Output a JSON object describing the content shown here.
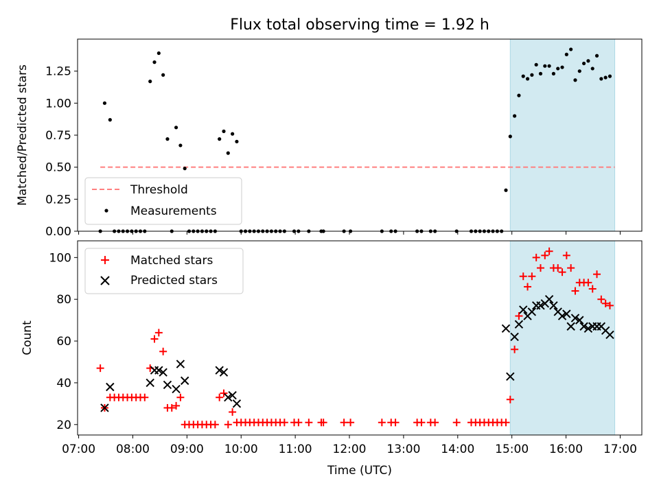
{
  "chart_data": {
    "title": "Flux total observing time = 1.92 h",
    "xlabel": "Time (UTC)",
    "x_ticks": [
      "07:00",
      "08:00",
      "09:00",
      "10:00",
      "11:00",
      "12:00",
      "13:00",
      "14:00",
      "15:00",
      "16:00",
      "17:00"
    ],
    "x_range_hours": [
      6.98,
      17.4
    ],
    "shaded_interval_hours": [
      14.97,
      16.9
    ],
    "shade_color": "#add8e6",
    "panels": [
      {
        "type": "scatter",
        "ylabel": "Matched/Predicted stars",
        "ylim": [
          0,
          1.5
        ],
        "y_ticks": [
          "0.00",
          "0.25",
          "0.50",
          "0.75",
          "1.00",
          "1.25"
        ],
        "legend_position": "lower-left",
        "threshold": {
          "name": "Threshold",
          "value": 0.5,
          "x_range": [
            7.4,
            16.9
          ],
          "color": "#ff7f7f"
        },
        "series": [
          {
            "name": "Measurements",
            "color": "#000000",
            "marker": "dot",
            "points": [
              [
                7.4,
                0.0
              ],
              [
                7.48,
                1.0
              ],
              [
                7.58,
                0.87
              ],
              [
                7.66,
                0.0
              ],
              [
                7.74,
                0.0
              ],
              [
                7.82,
                0.0
              ],
              [
                7.9,
                0.0
              ],
              [
                7.98,
                0.0
              ],
              [
                8.06,
                0.0
              ],
              [
                8.14,
                0.0
              ],
              [
                8.22,
                0.0
              ],
              [
                8.32,
                1.17
              ],
              [
                8.4,
                1.32
              ],
              [
                8.48,
                1.39
              ],
              [
                8.56,
                1.22
              ],
              [
                8.64,
                0.72
              ],
              [
                8.72,
                0.0
              ],
              [
                8.8,
                0.81
              ],
              [
                8.88,
                0.67
              ],
              [
                8.96,
                0.49
              ],
              [
                9.04,
                0.0
              ],
              [
                9.12,
                0.0
              ],
              [
                9.2,
                0.0
              ],
              [
                9.28,
                0.0
              ],
              [
                9.36,
                0.0
              ],
              [
                9.44,
                0.0
              ],
              [
                9.52,
                0.0
              ],
              [
                9.6,
                0.72
              ],
              [
                9.68,
                0.78
              ],
              [
                9.76,
                0.61
              ],
              [
                9.84,
                0.76
              ],
              [
                9.92,
                0.7
              ],
              [
                10.0,
                0.0
              ],
              [
                10.08,
                0.0
              ],
              [
                10.16,
                0.0
              ],
              [
                10.24,
                0.0
              ],
              [
                10.32,
                0.0
              ],
              [
                10.4,
                0.0
              ],
              [
                10.48,
                0.0
              ],
              [
                10.56,
                0.0
              ],
              [
                10.64,
                0.0
              ],
              [
                10.72,
                0.0
              ],
              [
                10.8,
                0.0
              ],
              [
                10.98,
                0.0
              ],
              [
                11.06,
                0.0
              ],
              [
                11.25,
                0.0
              ],
              [
                11.48,
                0.0
              ],
              [
                11.52,
                0.0
              ],
              [
                11.9,
                0.0
              ],
              [
                12.02,
                0.0
              ],
              [
                12.6,
                0.0
              ],
              [
                12.77,
                0.0
              ],
              [
                12.85,
                0.0
              ],
              [
                13.25,
                0.0
              ],
              [
                13.33,
                0.0
              ],
              [
                13.5,
                0.0
              ],
              [
                13.58,
                0.0
              ],
              [
                13.98,
                0.0
              ],
              [
                14.25,
                0.0
              ],
              [
                14.33,
                0.0
              ],
              [
                14.41,
                0.0
              ],
              [
                14.49,
                0.0
              ],
              [
                14.57,
                0.0
              ],
              [
                14.65,
                0.0
              ],
              [
                14.73,
                0.0
              ],
              [
                14.81,
                0.0
              ],
              [
                14.89,
                0.32
              ],
              [
                14.97,
                0.74
              ],
              [
                15.05,
                0.9
              ],
              [
                15.13,
                1.06
              ],
              [
                15.21,
                1.21
              ],
              [
                15.29,
                1.19
              ],
              [
                15.37,
                1.22
              ],
              [
                15.45,
                1.3
              ],
              [
                15.53,
                1.23
              ],
              [
                15.61,
                1.29
              ],
              [
                15.69,
                1.29
              ],
              [
                15.77,
                1.23
              ],
              [
                15.85,
                1.27
              ],
              [
                15.93,
                1.28
              ],
              [
                16.01,
                1.38
              ],
              [
                16.09,
                1.42
              ],
              [
                16.17,
                1.18
              ],
              [
                16.25,
                1.25
              ],
              [
                16.33,
                1.31
              ],
              [
                16.41,
                1.33
              ],
              [
                16.49,
                1.27
              ],
              [
                16.57,
                1.37
              ],
              [
                16.65,
                1.19
              ],
              [
                16.73,
                1.2
              ],
              [
                16.81,
                1.21
              ]
            ]
          }
        ]
      },
      {
        "type": "scatter",
        "ylabel": "Count",
        "ylim": [
          15,
          108
        ],
        "y_ticks": [
          "20",
          "40",
          "60",
          "80",
          "100"
        ],
        "legend_position": "top-left",
        "series": [
          {
            "name": "Matched stars",
            "color": "#ff0000",
            "marker": "plus",
            "points": [
              [
                7.4,
                47
              ],
              [
                7.48,
                28
              ],
              [
                7.58,
                33
              ],
              [
                7.66,
                33
              ],
              [
                7.74,
                33
              ],
              [
                7.82,
                33
              ],
              [
                7.9,
                33
              ],
              [
                7.98,
                33
              ],
              [
                8.06,
                33
              ],
              [
                8.14,
                33
              ],
              [
                8.22,
                33
              ],
              [
                8.32,
                47
              ],
              [
                8.4,
                61
              ],
              [
                8.48,
                64
              ],
              [
                8.56,
                55
              ],
              [
                8.64,
                28
              ],
              [
                8.72,
                28
              ],
              [
                8.8,
                29
              ],
              [
                8.88,
                33
              ],
              [
                8.96,
                20
              ],
              [
                9.04,
                20
              ],
              [
                9.12,
                20
              ],
              [
                9.2,
                20
              ],
              [
                9.28,
                20
              ],
              [
                9.36,
                20
              ],
              [
                9.44,
                20
              ],
              [
                9.52,
                20
              ],
              [
                9.6,
                33
              ],
              [
                9.68,
                35
              ],
              [
                9.76,
                20
              ],
              [
                9.84,
                26
              ],
              [
                9.92,
                21
              ],
              [
                10.0,
                21
              ],
              [
                10.08,
                21
              ],
              [
                10.16,
                21
              ],
              [
                10.24,
                21
              ],
              [
                10.32,
                21
              ],
              [
                10.4,
                21
              ],
              [
                10.48,
                21
              ],
              [
                10.56,
                21
              ],
              [
                10.64,
                21
              ],
              [
                10.72,
                21
              ],
              [
                10.8,
                21
              ],
              [
                10.98,
                21
              ],
              [
                11.06,
                21
              ],
              [
                11.25,
                21
              ],
              [
                11.48,
                21
              ],
              [
                11.52,
                21
              ],
              [
                11.9,
                21
              ],
              [
                12.02,
                21
              ],
              [
                12.6,
                21
              ],
              [
                12.77,
                21
              ],
              [
                12.85,
                21
              ],
              [
                13.25,
                21
              ],
              [
                13.33,
                21
              ],
              [
                13.5,
                21
              ],
              [
                13.58,
                21
              ],
              [
                13.98,
                21
              ],
              [
                14.25,
                21
              ],
              [
                14.33,
                21
              ],
              [
                14.41,
                21
              ],
              [
                14.49,
                21
              ],
              [
                14.57,
                21
              ],
              [
                14.65,
                21
              ],
              [
                14.73,
                21
              ],
              [
                14.81,
                21
              ],
              [
                14.89,
                21
              ],
              [
                14.97,
                32
              ],
              [
                15.05,
                56
              ],
              [
                15.13,
                72
              ],
              [
                15.21,
                91
              ],
              [
                15.29,
                86
              ],
              [
                15.37,
                91
              ],
              [
                15.45,
                100
              ],
              [
                15.53,
                95
              ],
              [
                15.61,
                101
              ],
              [
                15.69,
                103
              ],
              [
                15.77,
                95
              ],
              [
                15.85,
                95
              ],
              [
                15.93,
                93
              ],
              [
                16.01,
                101
              ],
              [
                16.09,
                95
              ],
              [
                16.17,
                84
              ],
              [
                16.25,
                88
              ],
              [
                16.33,
                88
              ],
              [
                16.41,
                88
              ],
              [
                16.49,
                85
              ],
              [
                16.57,
                92
              ],
              [
                16.65,
                80
              ],
              [
                16.73,
                78
              ],
              [
                16.81,
                77
              ]
            ]
          },
          {
            "name": "Predicted stars",
            "color": "#000000",
            "marker": "x",
            "points": [
              [
                7.48,
                28
              ],
              [
                7.58,
                38
              ],
              [
                8.32,
                40
              ],
              [
                8.4,
                46
              ],
              [
                8.48,
                46
              ],
              [
                8.56,
                45
              ],
              [
                8.64,
                39
              ],
              [
                8.8,
                37
              ],
              [
                8.88,
                49
              ],
              [
                8.96,
                41
              ],
              [
                9.6,
                46
              ],
              [
                9.68,
                45
              ],
              [
                9.76,
                33
              ],
              [
                9.84,
                34
              ],
              [
                9.92,
                30
              ],
              [
                14.89,
                66
              ],
              [
                14.97,
                43
              ],
              [
                15.05,
                62
              ],
              [
                15.13,
                68
              ],
              [
                15.21,
                75
              ],
              [
                15.29,
                72
              ],
              [
                15.37,
                74
              ],
              [
                15.45,
                77
              ],
              [
                15.53,
                77
              ],
              [
                15.61,
                78
              ],
              [
                15.69,
                80
              ],
              [
                15.77,
                77
              ],
              [
                15.85,
                74
              ],
              [
                15.93,
                72
              ],
              [
                16.01,
                73
              ],
              [
                16.09,
                67
              ],
              [
                16.17,
                71
              ],
              [
                16.25,
                70
              ],
              [
                16.33,
                67
              ],
              [
                16.41,
                66
              ],
              [
                16.49,
                67
              ],
              [
                16.57,
                67
              ],
              [
                16.65,
                67
              ],
              [
                16.73,
                65
              ],
              [
                16.81,
                63
              ]
            ]
          }
        ]
      }
    ]
  }
}
